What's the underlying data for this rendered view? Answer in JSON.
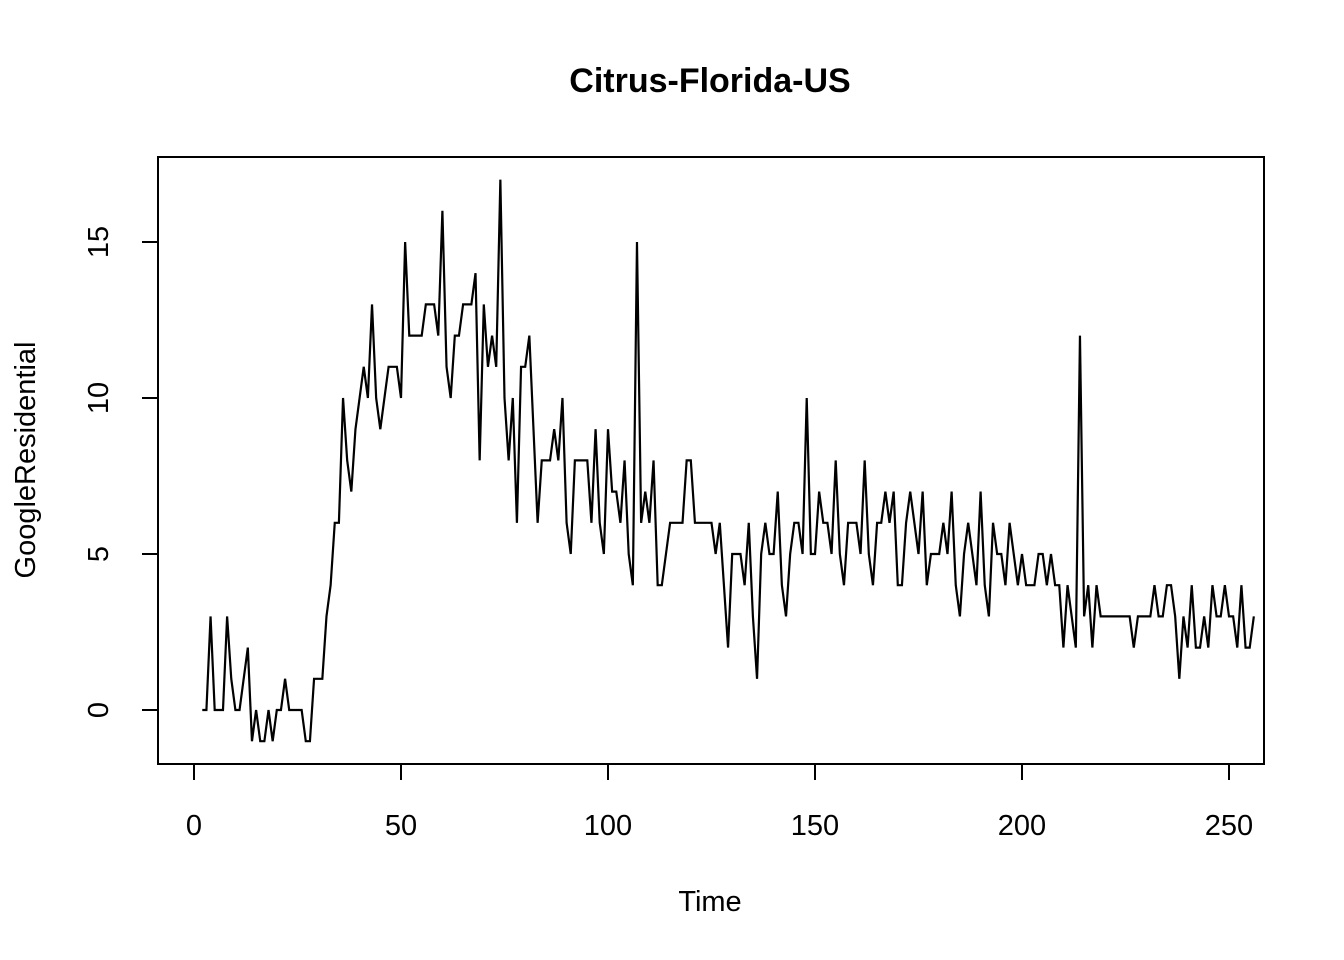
{
  "chart_data": {
    "type": "line",
    "title": "Citrus-Florida-US",
    "xlabel": "Time",
    "ylabel": "GoogleResidential",
    "xlim": [
      1,
      248
    ],
    "ylim": [
      -1,
      17
    ],
    "xticks": [
      0,
      50,
      100,
      150,
      200,
      250
    ],
    "yticks": [
      0,
      5,
      10,
      15
    ],
    "xtick_labels": [
      "0",
      "50",
      "100",
      "150",
      "200",
      "250"
    ],
    "ytick_labels": [
      "0",
      "5",
      "10",
      "15"
    ],
    "grid": false,
    "series": [
      {
        "name": "GoogleResidential",
        "color": "#000000",
        "x_start": 2,
        "values": [
          0,
          0,
          3,
          0,
          0,
          0,
          3,
          1,
          0,
          0,
          1,
          2,
          -1,
          0,
          -1,
          -1,
          0,
          -1,
          0,
          0,
          1,
          0,
          0,
          0,
          0,
          -1,
          -1,
          1,
          1,
          1,
          3,
          4,
          6,
          6,
          10,
          8,
          7,
          9,
          10,
          11,
          10,
          13,
          10,
          9,
          10,
          11,
          11,
          11,
          10,
          15,
          12,
          12,
          12,
          12,
          13,
          13,
          13,
          12,
          16,
          11,
          10,
          12,
          12,
          13,
          13,
          13,
          14,
          8,
          13,
          11,
          12,
          11,
          17,
          10,
          8,
          10,
          6,
          11,
          11,
          12,
          9,
          6,
          8,
          8,
          8,
          9,
          8,
          10,
          6,
          5,
          8,
          8,
          8,
          8,
          6,
          9,
          6,
          5,
          9,
          7,
          7,
          6,
          8,
          5,
          4,
          15,
          6,
          7,
          6,
          8,
          4,
          4,
          5,
          6,
          6,
          6,
          6,
          8,
          8,
          6,
          6,
          6,
          6,
          6,
          5,
          6,
          4,
          2,
          5,
          5,
          5,
          4,
          6,
          3,
          1,
          5,
          6,
          5,
          5,
          7,
          4,
          3,
          5,
          6,
          6,
          5,
          10,
          5,
          5,
          7,
          6,
          6,
          5,
          8,
          5,
          4,
          6,
          6,
          6,
          5,
          8,
          5,
          4,
          6,
          6,
          7,
          6,
          7,
          4,
          4,
          6,
          7,
          6,
          5,
          7,
          4,
          5,
          5,
          5,
          6,
          5,
          7,
          4,
          3,
          5,
          6,
          5,
          4,
          7,
          4,
          3,
          6,
          5,
          5,
          4,
          6,
          5,
          4,
          5,
          4,
          4,
          4,
          5,
          5,
          4,
          5,
          4,
          4,
          2,
          4,
          3,
          2,
          12,
          3,
          4,
          2,
          4,
          3,
          3,
          3,
          3,
          3,
          3,
          3,
          3,
          2,
          3,
          3,
          3,
          3,
          4,
          3,
          3,
          4,
          4,
          3,
          1,
          3,
          2,
          4,
          2,
          2,
          3,
          2,
          4,
          3,
          3,
          4,
          3,
          3,
          2,
          4,
          2,
          2,
          3
        ]
      }
    ]
  }
}
